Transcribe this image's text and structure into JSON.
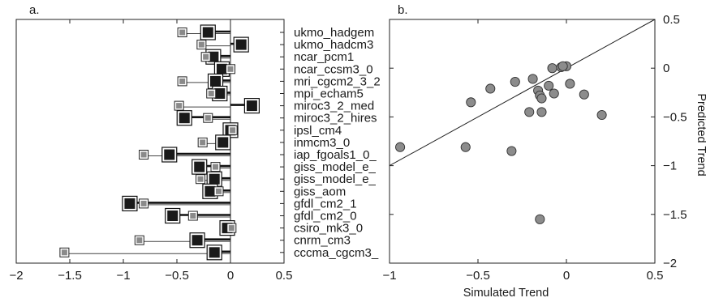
{
  "panel_a_label": "a.",
  "panel_b_label": "b.",
  "chart_data": [
    {
      "type": "scatter",
      "panel": "a.",
      "xlim": [
        -2,
        0.5
      ],
      "xticks": [
        -2,
        -1.5,
        -1,
        -0.5,
        0,
        0.5
      ],
      "grid": false,
      "categories": [
        "ukmo_hadgem",
        "ukmo_hadcm3",
        "ncar_pcm1",
        "ncar_ccsm3_0",
        "mri_cgcm2_3_2",
        "mpi_echam5",
        "miroc3_2_med",
        "miroc3_2_hires",
        "ipsl_cm4",
        "inmcm3_0",
        "iap_fgoals1_0_",
        "giss_model_e_",
        "giss_model_e_",
        "giss_aom",
        "gfdl_cm2_1",
        "gfdl_cm2_0",
        "csiro_mk3_0",
        "cnrm_cm3",
        "cccma_cgcm3_"
      ],
      "simulated": [
        -0.21,
        0.1,
        -0.16,
        -0.08,
        -0.14,
        -0.1,
        0.2,
        -0.43,
        0.0,
        -0.07,
        -0.57,
        -0.29,
        -0.15,
        -0.19,
        -0.94,
        -0.54,
        -0.03,
        -0.31,
        -0.15
      ],
      "predicted": [
        -0.45,
        -0.27,
        -0.23,
        0.0,
        -0.45,
        -0.18,
        -0.48,
        -0.21,
        0.02,
        -0.26,
        -0.81,
        -0.14,
        -0.28,
        -0.11,
        -0.81,
        -0.35,
        0.01,
        -0.85,
        -1.55
      ]
    },
    {
      "type": "scatter",
      "panel": "b.",
      "xlabel": "Simulated Trend",
      "ylabel": "Predicted Trend",
      "xlim": [
        -1,
        0.5
      ],
      "ylim": [
        -2,
        0.5
      ],
      "xticks": [
        -1,
        -0.5,
        0,
        0.5
      ],
      "yticks": [
        0.5,
        0,
        -0.5,
        -1,
        -1.5,
        -2
      ],
      "grid": false,
      "reference_line": "y = x",
      "points": [
        {
          "x": -0.21,
          "y": -0.45
        },
        {
          "x": 0.1,
          "y": -0.27
        },
        {
          "x": -0.16,
          "y": -0.23
        },
        {
          "x": -0.08,
          "y": 0.0
        },
        {
          "x": -0.14,
          "y": -0.45
        },
        {
          "x": -0.1,
          "y": -0.18
        },
        {
          "x": 0.2,
          "y": -0.48
        },
        {
          "x": -0.43,
          "y": -0.21
        },
        {
          "x": 0.0,
          "y": 0.02
        },
        {
          "x": -0.07,
          "y": -0.26
        },
        {
          "x": -0.57,
          "y": -0.81
        },
        {
          "x": -0.29,
          "y": -0.14
        },
        {
          "x": -0.15,
          "y": -0.28
        },
        {
          "x": -0.19,
          "y": -0.11
        },
        {
          "x": -0.94,
          "y": -0.81
        },
        {
          "x": -0.54,
          "y": -0.35
        },
        {
          "x": -0.03,
          "y": 0.01
        },
        {
          "x": -0.31,
          "y": -0.85
        },
        {
          "x": -0.15,
          "y": -1.55
        },
        {
          "x": 0.02,
          "y": -0.16
        },
        {
          "x": -0.14,
          "y": -0.31
        },
        {
          "x": -0.02,
          "y": 0.02
        }
      ]
    }
  ]
}
